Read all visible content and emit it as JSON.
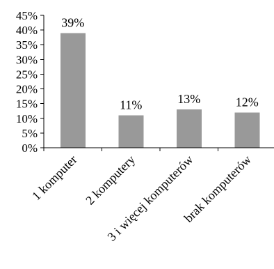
{
  "chart_data": {
    "type": "bar",
    "categories": [
      "1 komputer",
      "2 komputery",
      "3 i więcej komputerów",
      "brak komputerów"
    ],
    "values": [
      39,
      11,
      13,
      12
    ],
    "data_labels": [
      "39%",
      "11%",
      "13%",
      "12%"
    ],
    "ylim": [
      0,
      45
    ],
    "yticks": [
      "0%",
      "5%",
      "10%",
      "15%",
      "20%",
      "25%",
      "30%",
      "35%",
      "40%",
      "45%"
    ],
    "bar_color": "#999999",
    "grid": false,
    "legend": "none"
  }
}
